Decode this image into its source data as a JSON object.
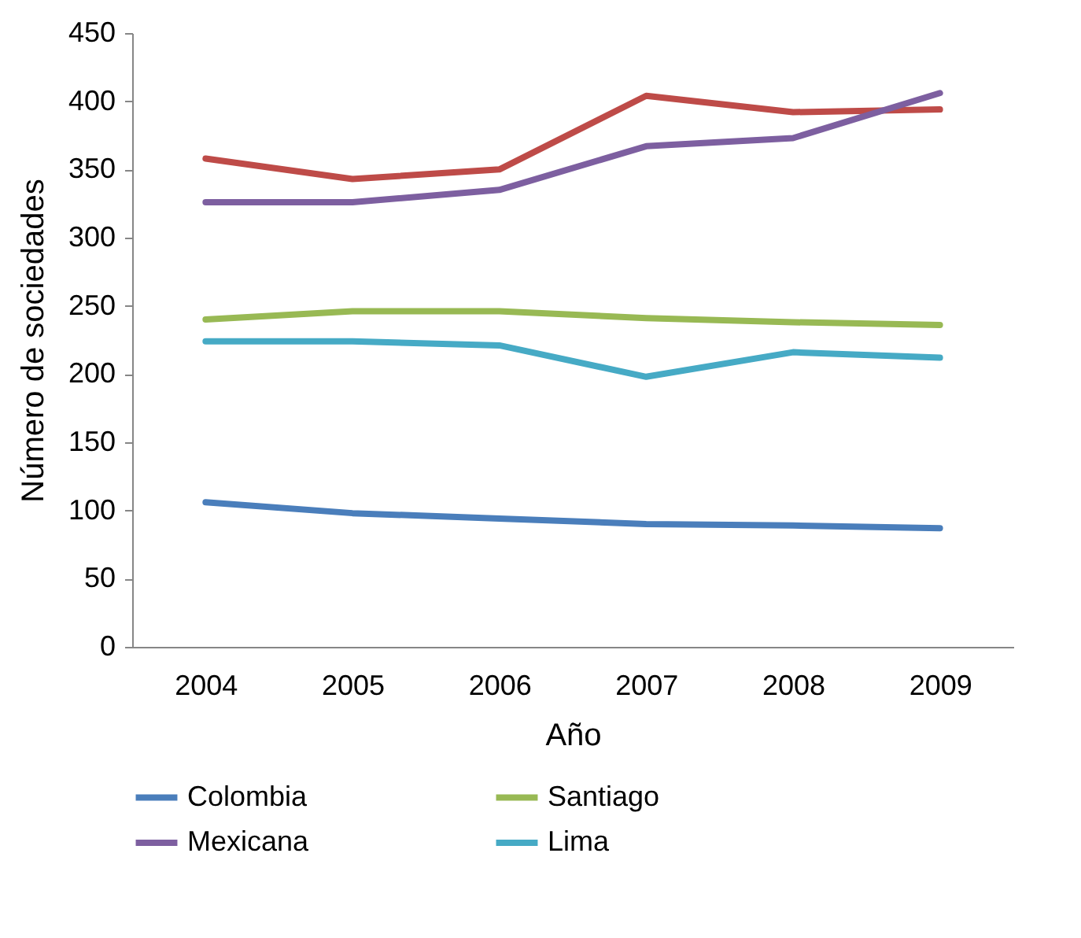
{
  "chart_data": {
    "type": "line",
    "xlabel": "Año",
    "ylabel": "Número de sociedades",
    "categories": [
      "2004",
      "2005",
      "2006",
      "2007",
      "2008",
      "2009"
    ],
    "series": [
      {
        "name": "Colombia",
        "color": "#4a7ebb",
        "values": [
          106,
          98,
          94,
          90,
          89,
          87
        ]
      },
      {
        "color": "#be4b48",
        "values": [
          358,
          343,
          350,
          404,
          392,
          394
        ]
      },
      {
        "name": "Santiago",
        "color": "#98b954",
        "values": [
          240,
          246,
          246,
          241,
          238,
          236
        ]
      },
      {
        "name": "Mexicana",
        "color": "#7d5fa0",
        "values": [
          326,
          326,
          335,
          367,
          373,
          406
        ]
      },
      {
        "name": "Lima",
        "color": "#46aac5",
        "values": [
          224,
          224,
          221,
          198,
          216,
          212
        ]
      }
    ],
    "ylim": [
      0,
      450
    ],
    "yticks": [
      0,
      50,
      100,
      150,
      200,
      250,
      300,
      350,
      400,
      450
    ],
    "grid": false,
    "legend": "bottom",
    "marker": "none",
    "line_style": "solid"
  }
}
